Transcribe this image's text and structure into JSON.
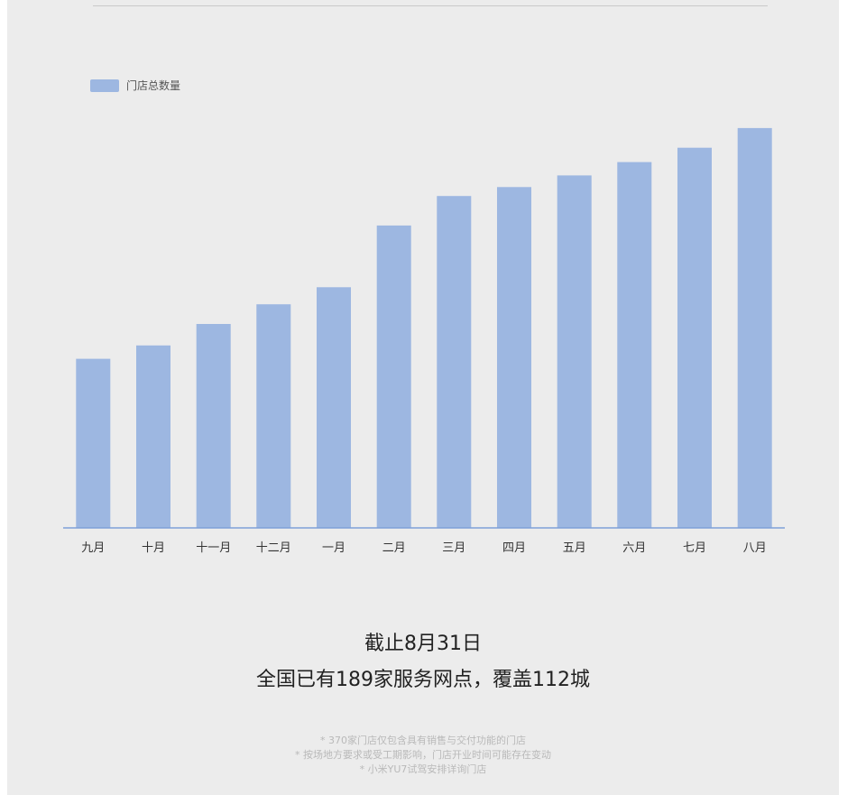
{
  "chart_data": {
    "type": "bar",
    "categories": [
      "九月",
      "十月",
      "十一月",
      "十二月",
      "一月",
      "二月",
      "三月",
      "四月",
      "五月",
      "六月",
      "七月",
      "八月"
    ],
    "series": [
      {
        "name": "门店总数量",
        "values": [
          189,
          204,
          228,
          250,
          269,
          338,
          371,
          381,
          394,
          409,
          425,
          447
        ]
      }
    ],
    "ylim": [
      0,
      460
    ],
    "grid": false,
    "legend_position": "top-left",
    "bar_color": "#9db7e1",
    "axis_color": "#7ea0d8"
  },
  "headline": {
    "line1": "截止8月31日",
    "line2": "全国已有189家服务网点，覆盖112城"
  },
  "notes": [
    "* 370家门店仅包含具有销售与交付功能的门店",
    "* 按场地方要求或受工期影响，门店开业时间可能存在变动",
    "* 小米YU7试驾安排详询门店"
  ]
}
